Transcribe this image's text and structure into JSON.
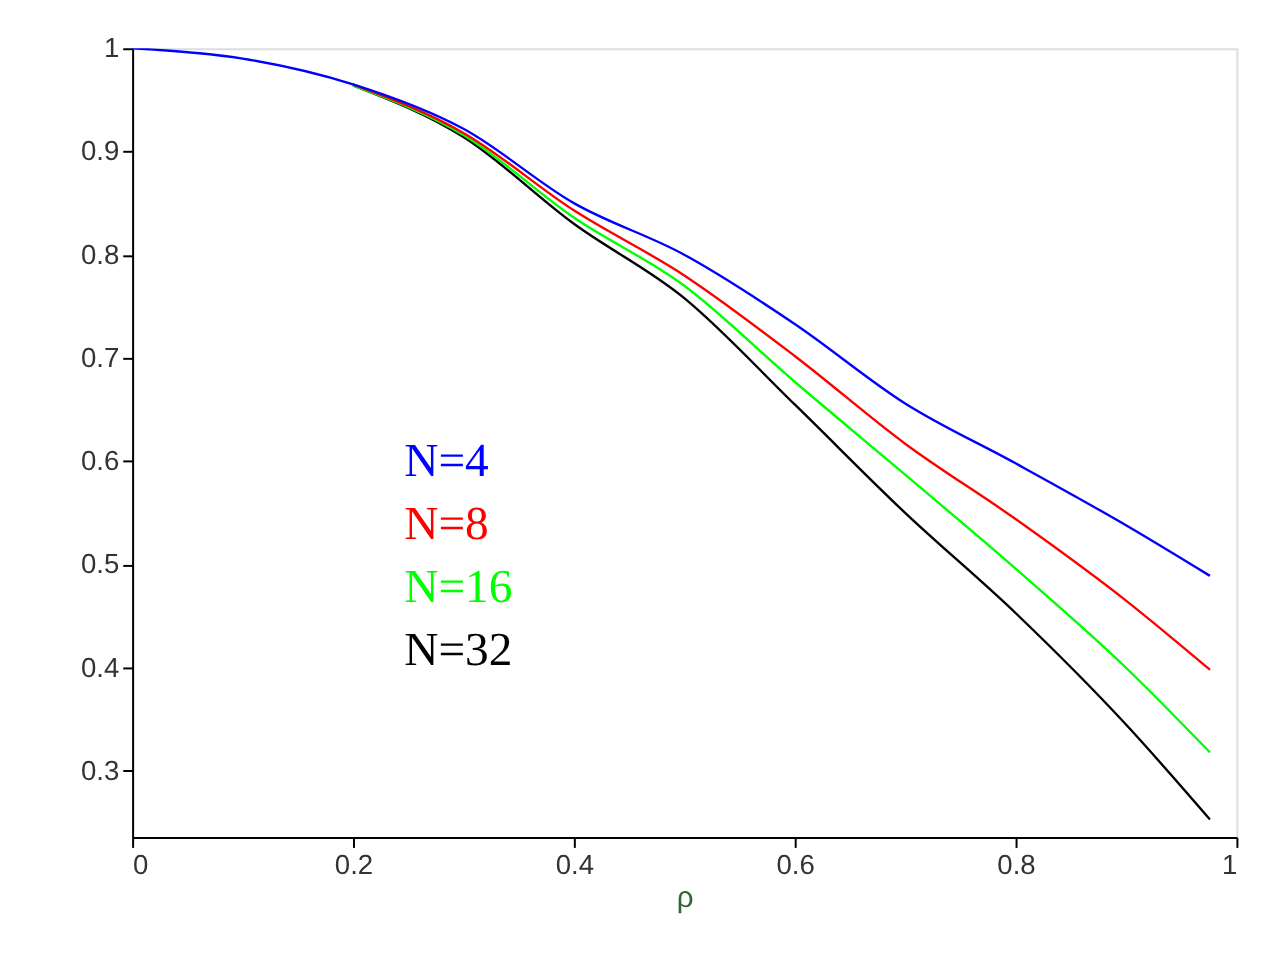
{
  "chart_data": {
    "type": "line",
    "xlabel": "ρ",
    "x": [
      0,
      0.1,
      0.2,
      0.3,
      0.4,
      0.5,
      0.6,
      0.7,
      0.8,
      0.9,
      0.976
    ],
    "series": [
      {
        "name": "N=4",
        "color": "#0000ff",
        "values": [
          1,
          0.99,
          0.965,
          0.922,
          0.85,
          0.8,
          0.733,
          0.656,
          0.598,
          0.538,
          0.489
        ]
      },
      {
        "name": "N=8",
        "color": "#ff0000",
        "values": [
          null,
          null,
          0.965,
          0.918,
          0.843,
          0.78,
          0.702,
          0.617,
          0.544,
          0.465,
          0.398
        ]
      },
      {
        "name": "N=16",
        "color": "#00ff00",
        "values": [
          null,
          null,
          0.964,
          0.916,
          0.836,
          0.77,
          0.677,
          0.587,
          0.496,
          0.4,
          0.318
        ]
      },
      {
        "name": "N=32",
        "color": "#000000",
        "values": [
          null,
          null,
          0.964,
          0.914,
          0.83,
          0.758,
          0.655,
          0.55,
          0.453,
          0.345,
          0.253
        ]
      }
    ],
    "xlim": [
      0,
      1
    ],
    "xticks": [
      0,
      0.2,
      0.4,
      0.6,
      0.8,
      1
    ],
    "ylim": [
      0.236,
      1
    ],
    "yticks": [
      0.3,
      0.4,
      0.5,
      0.6,
      0.7,
      0.8,
      0.9,
      1
    ],
    "grid": false,
    "marker": "none",
    "line_style": "solid"
  }
}
